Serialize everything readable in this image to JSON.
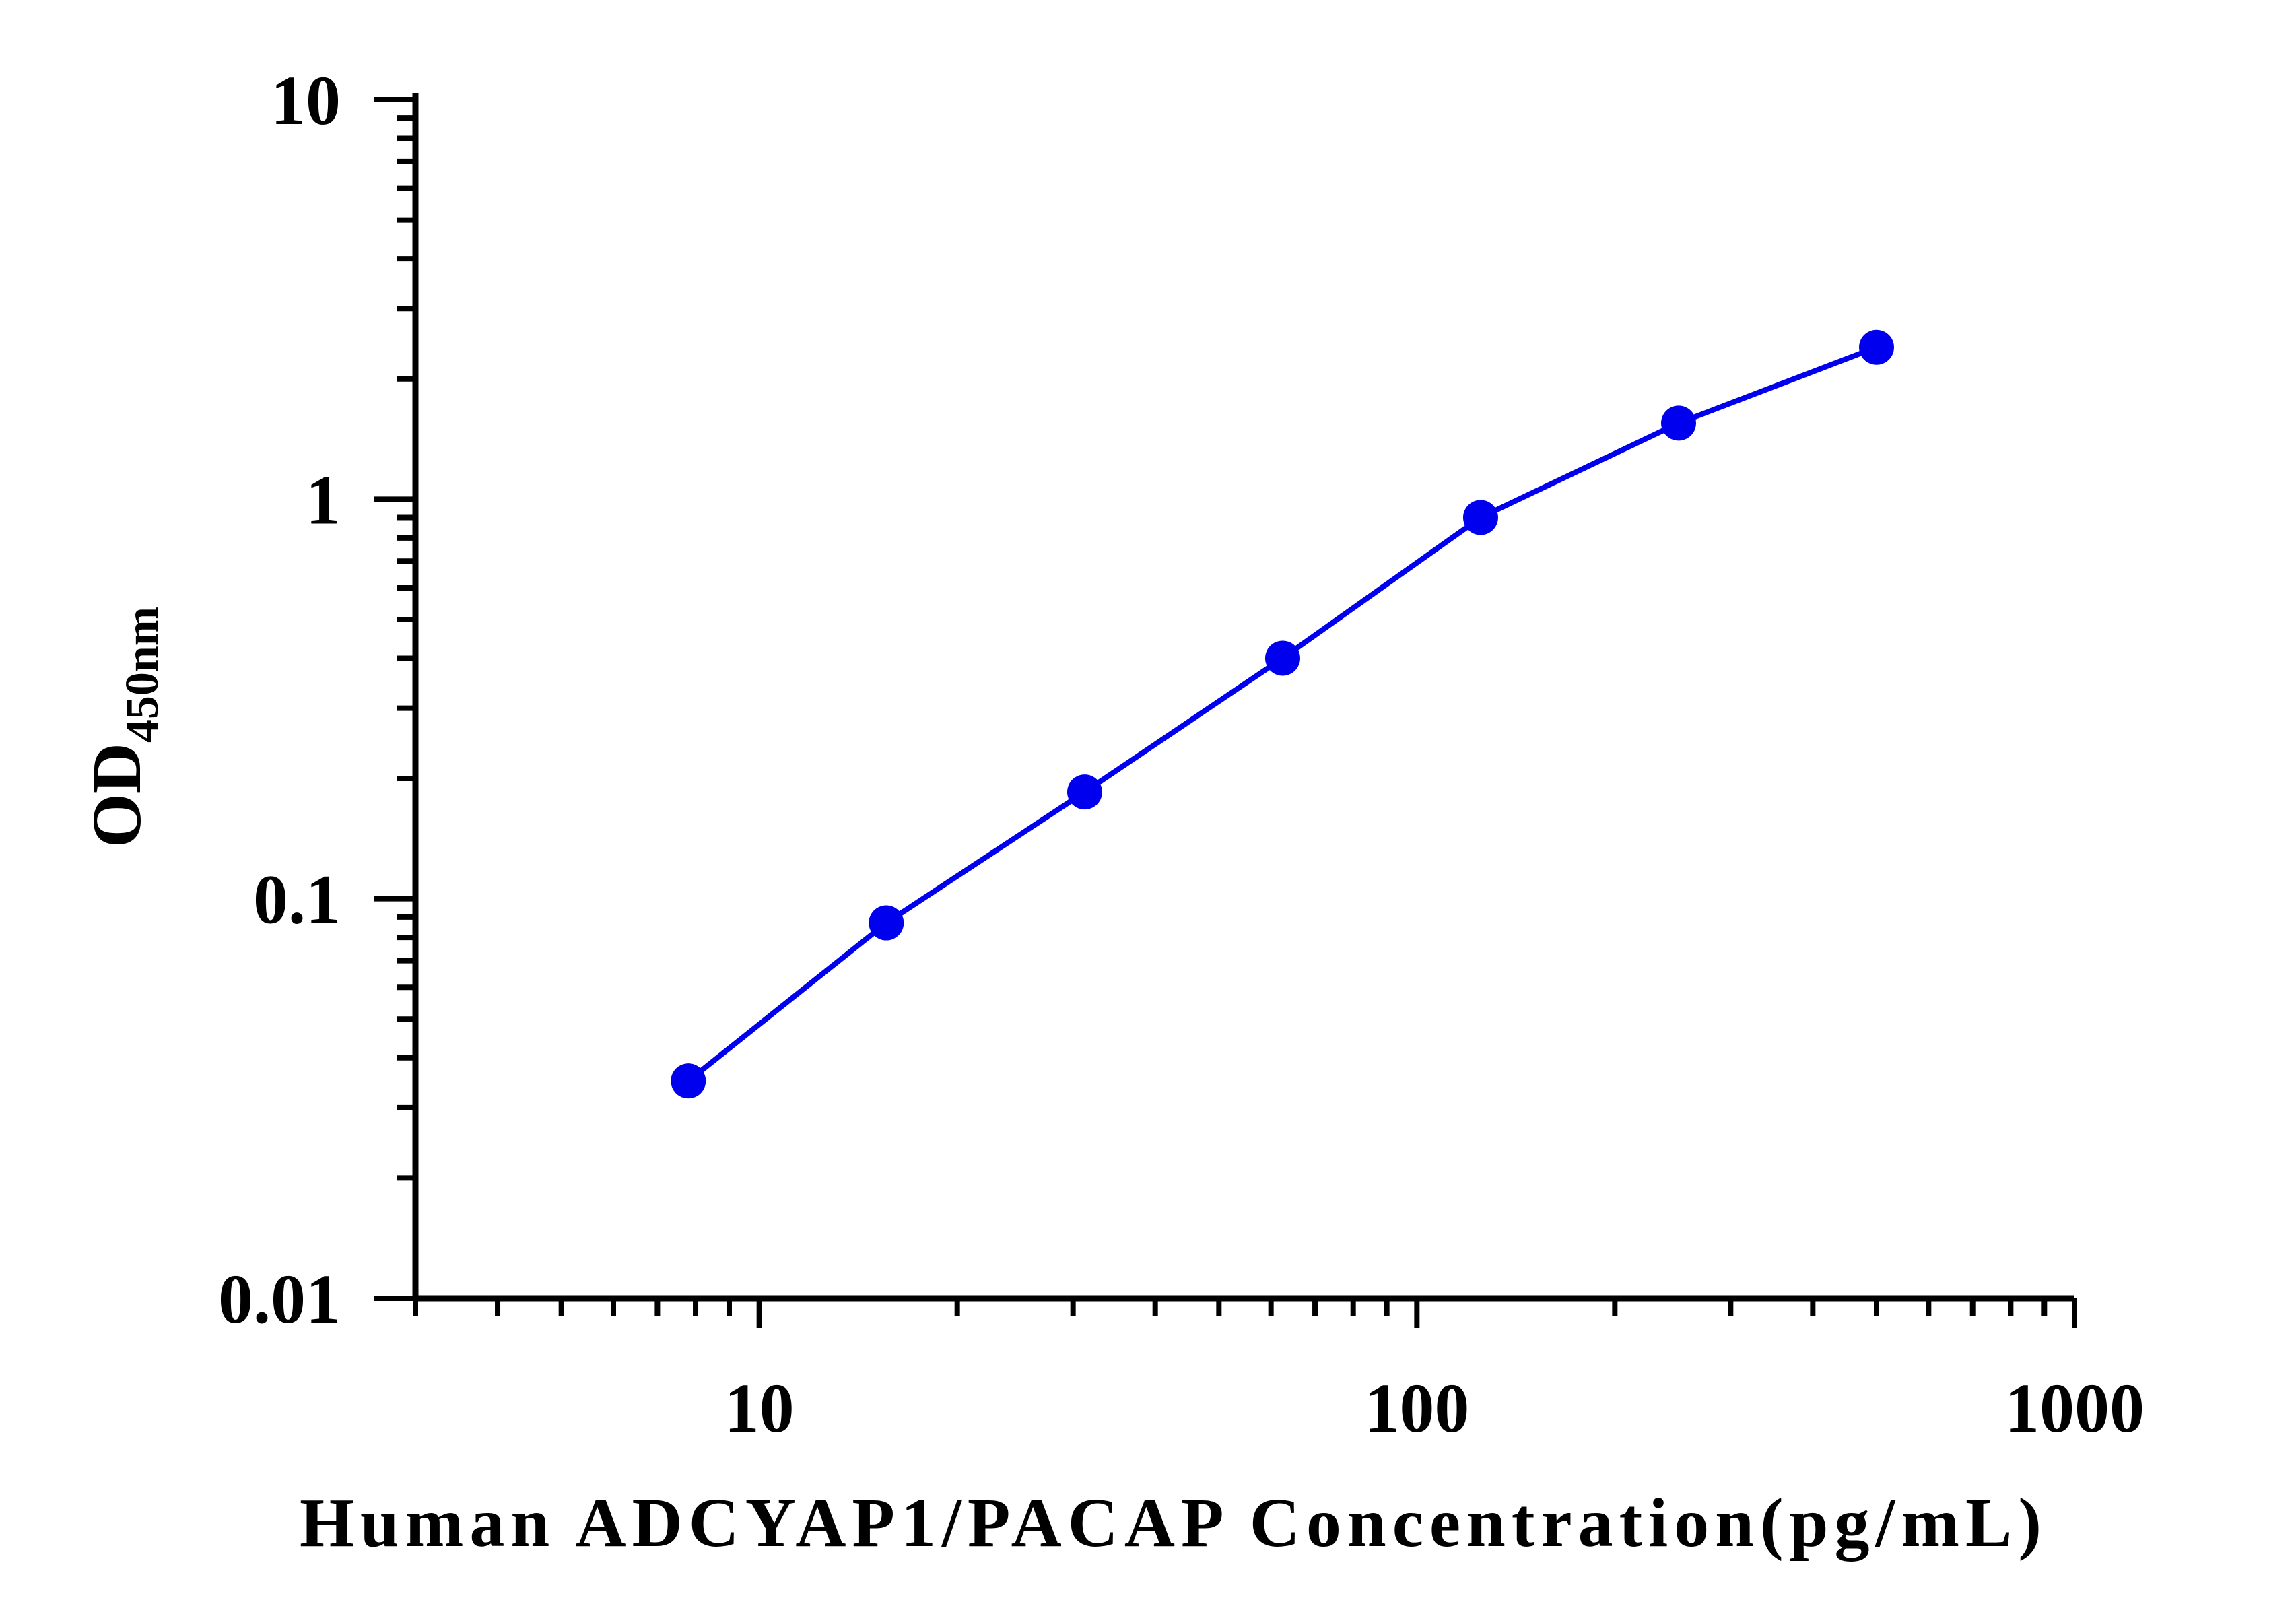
{
  "chart_data": {
    "type": "line",
    "xlabel": "Human ADCYAP1/PACAP Concentration(pg/mL)",
    "ylabel": {
      "main": "OD",
      "subscript": "450nm"
    },
    "x_scale": "log",
    "y_scale": "log",
    "xlim": [
      3,
      1000
    ],
    "ylim": [
      0.01,
      10
    ],
    "x_ticks": [
      10,
      100,
      1000
    ],
    "x_tick_labels": [
      "10",
      "100",
      "1000"
    ],
    "y_ticks": [
      0.01,
      0.1,
      1,
      10
    ],
    "y_tick_labels": [
      "0.01",
      "0.1",
      "1",
      "10"
    ],
    "grid": false,
    "series": [
      {
        "color": "#0000ee",
        "x": [
          7.8,
          15.6,
          31.25,
          62.5,
          125,
          250,
          500
        ],
        "y": [
          0.035,
          0.087,
          0.185,
          0.4,
          0.9,
          1.55,
          2.4
        ]
      }
    ]
  }
}
